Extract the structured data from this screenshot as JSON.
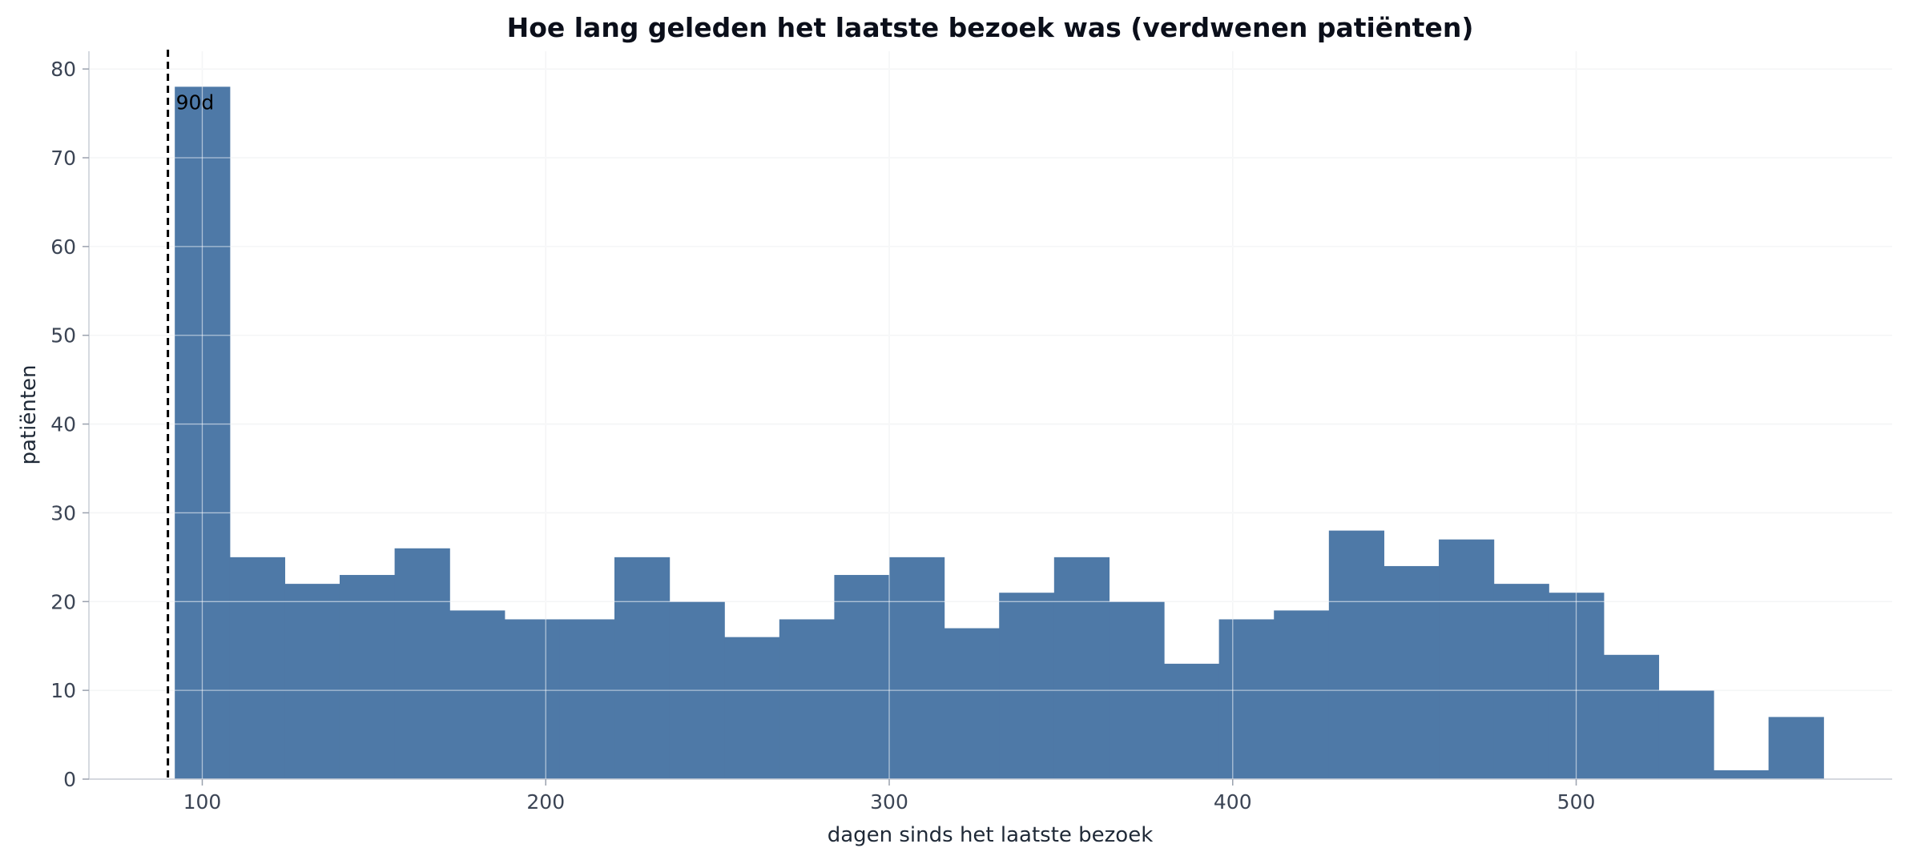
{
  "chart_data": {
    "type": "bar",
    "subtype": "histogram",
    "title": "Hoe lang geleden het laatste bezoek was (verdwenen patiënten)",
    "xlabel": "dagen sinds het laatste bezoek",
    "ylabel": "patiënten",
    "xlim": [
      67,
      592
    ],
    "ylim": [
      0,
      82
    ],
    "x_ticks": [
      100,
      200,
      300,
      400,
      500
    ],
    "y_ticks": [
      0,
      10,
      20,
      30,
      40,
      50,
      60,
      70,
      80
    ],
    "grid": true,
    "bar_color": "#4e79a7",
    "bins": [
      {
        "start": 92,
        "end": 108,
        "count": 78
      },
      {
        "start": 108,
        "end": 124,
        "count": 25
      },
      {
        "start": 124,
        "end": 140,
        "count": 22
      },
      {
        "start": 140,
        "end": 156,
        "count": 23
      },
      {
        "start": 156,
        "end": 172,
        "count": 26
      },
      {
        "start": 172,
        "end": 188,
        "count": 19
      },
      {
        "start": 188,
        "end": 204,
        "count": 18
      },
      {
        "start": 204,
        "end": 220,
        "count": 18
      },
      {
        "start": 220,
        "end": 236,
        "count": 25
      },
      {
        "start": 236,
        "end": 252,
        "count": 20
      },
      {
        "start": 252,
        "end": 268,
        "count": 16
      },
      {
        "start": 268,
        "end": 284,
        "count": 18
      },
      {
        "start": 284,
        "end": 300,
        "count": 23
      },
      {
        "start": 300,
        "end": 316,
        "count": 25
      },
      {
        "start": 316,
        "end": 332,
        "count": 17
      },
      {
        "start": 332,
        "end": 348,
        "count": 21
      },
      {
        "start": 348,
        "end": 364,
        "count": 25
      },
      {
        "start": 364,
        "end": 380,
        "count": 20
      },
      {
        "start": 380,
        "end": 396,
        "count": 13
      },
      {
        "start": 396,
        "end": 412,
        "count": 18
      },
      {
        "start": 412,
        "end": 428,
        "count": 19
      },
      {
        "start": 428,
        "end": 444,
        "count": 28
      },
      {
        "start": 444,
        "end": 460,
        "count": 24
      },
      {
        "start": 460,
        "end": 476,
        "count": 27
      },
      {
        "start": 476,
        "end": 492,
        "count": 22
      },
      {
        "start": 492,
        "end": 508,
        "count": 21
      },
      {
        "start": 508,
        "end": 524,
        "count": 14
      },
      {
        "start": 524,
        "end": 540,
        "count": 10
      },
      {
        "start": 540,
        "end": 556,
        "count": 1
      },
      {
        "start": 556,
        "end": 572,
        "count": 7
      }
    ],
    "reference_line": {
      "x": 90,
      "label": "90d",
      "style": "dashed",
      "color": "#000000"
    }
  }
}
